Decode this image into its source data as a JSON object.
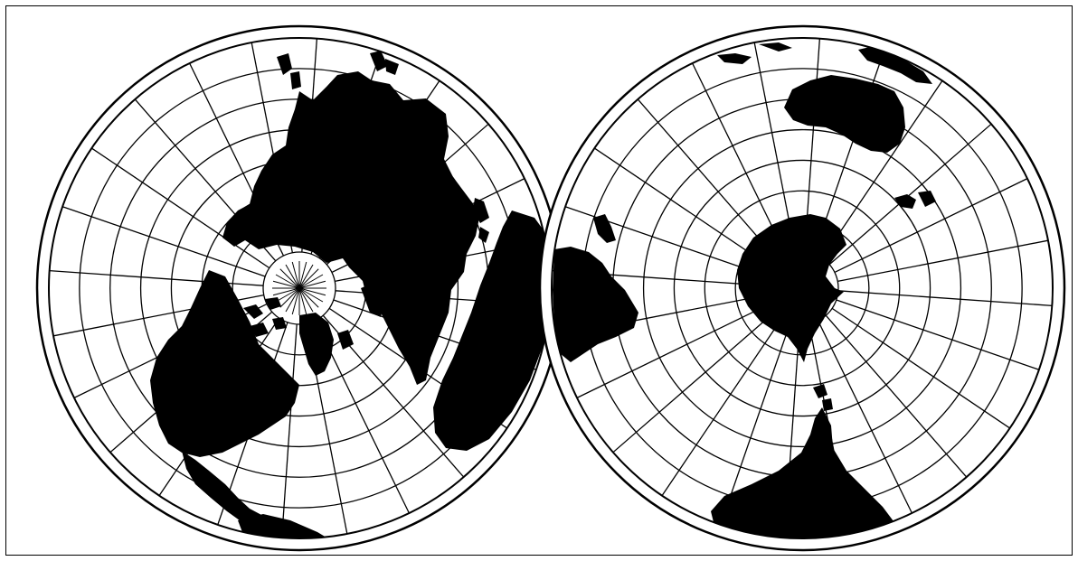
{
  "map": {
    "type": "polar-azimuthal-double-hemisphere",
    "hemispheres": [
      {
        "name": "north-polar-hemisphere",
        "meridian_count": 24,
        "parallel_rings": 6
      },
      {
        "name": "south-polar-hemisphere",
        "meridian_count": 24,
        "parallel_rings": 6
      }
    ],
    "colors": {
      "land": "#000000",
      "ocean": "#ffffff",
      "grid": "#000000",
      "background": "#ffffff"
    }
  }
}
